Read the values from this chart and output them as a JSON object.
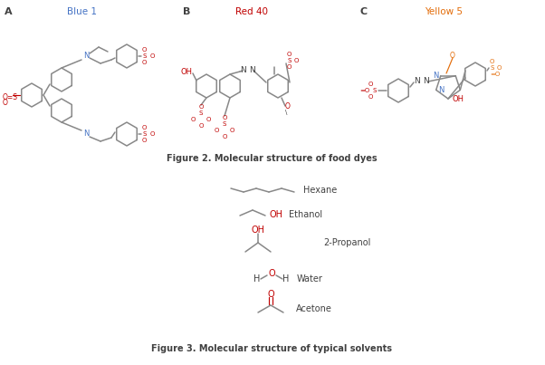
{
  "fig_caption_2": "Figure 2. Molecular structure of food dyes",
  "fig_caption_3": "Figure 3. Molecular structure of typical solvents",
  "label_A": "A",
  "label_B": "B",
  "label_C": "C",
  "label_blue1": "Blue 1",
  "label_red40": "Red 40",
  "label_yellow5": "Yellow 5",
  "color_blue": "#4472C4",
  "color_red": "#C00000",
  "color_orange": "#E36C09",
  "color_dark": "#404040",
  "color_gray": "#888888",
  "bg_color": "#FFFFFF"
}
